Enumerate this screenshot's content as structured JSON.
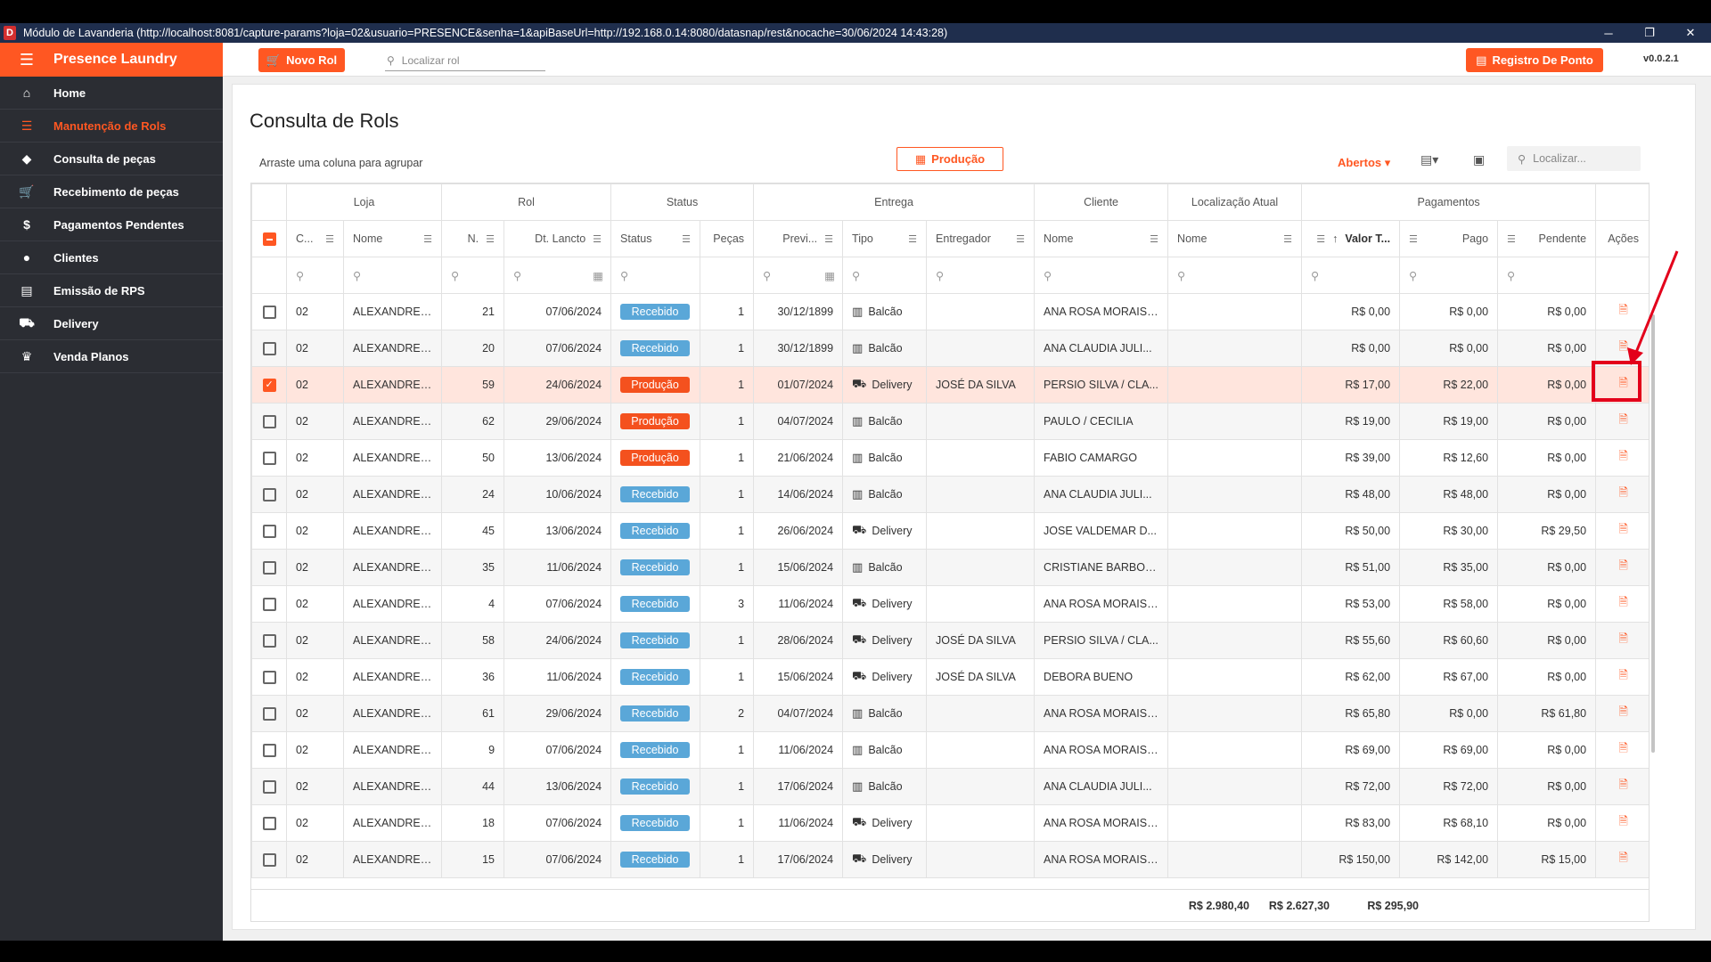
{
  "window": {
    "title": "Módulo de Lavanderia (http://localhost:8081/capture-params?loja=02&usuario=PRESENCE&senha=1&apiBaseUrl=http://192.168.0.14:8080/datasnap/rest&nocache=30/06/2024 14:43:28)",
    "app_icon_letter": "D"
  },
  "sidebar": {
    "brand": "Presence Laundry",
    "items": [
      {
        "label": "Home",
        "icon": "home-icon"
      },
      {
        "label": "Manutenção de Rols",
        "icon": "list-edit-icon",
        "active": true
      },
      {
        "label": "Consulta de peças",
        "icon": "tag-icon"
      },
      {
        "label": "Recebimento de peças",
        "icon": "cart-icon"
      },
      {
        "label": "Pagamentos Pendentes",
        "icon": "dollar-icon"
      },
      {
        "label": "Clientes",
        "icon": "person-icon"
      },
      {
        "label": "Emissão de RPS",
        "icon": "receipt-icon"
      },
      {
        "label": "Delivery",
        "icon": "delivery-icon"
      },
      {
        "label": "Venda Planos",
        "icon": "plans-icon"
      }
    ]
  },
  "toolbar": {
    "novo_rol": "Novo Rol",
    "search_placeholder": "Localizar rol",
    "registro_ponto": "Registro De Ponto",
    "version": "v0.0.2.1"
  },
  "page": {
    "title": "Consulta de Rols",
    "group_hint": "Arraste uma coluna para agrupar",
    "producao_button": "Produção",
    "abertos": "Abertos",
    "grid_search_placeholder": "Localizar..."
  },
  "grid": {
    "bands": [
      "Loja",
      "Rol",
      "Status",
      "Entrega",
      "Cliente",
      "Localização Atual",
      "Pagamentos"
    ],
    "columns": [
      "C...",
      "Nome",
      "N.",
      "Dt. Lancto",
      "Status",
      "Peças",
      "Previ...",
      "Tipo",
      "Entregador",
      "Nome",
      "Nome",
      "Valor T...",
      "Pago",
      "Pendente",
      "Ações"
    ],
    "rows": [
      {
        "cod": "02",
        "loja": "ALEXANDRE ...",
        "n": "21",
        "dt": "07/06/2024",
        "status": "Recebido",
        "pecas": "1",
        "prev": "30/12/1899",
        "tipo": "Balcão",
        "entregador": "",
        "cliente": "ANA ROSA MORAIS ...",
        "local": "",
        "valor": "R$ 0,00",
        "pago": "R$ 0,00",
        "pend": "R$ 0,00",
        "checked": false
      },
      {
        "cod": "02",
        "loja": "ALEXANDRE ...",
        "n": "20",
        "dt": "07/06/2024",
        "status": "Recebido",
        "pecas": "1",
        "prev": "30/12/1899",
        "tipo": "Balcão",
        "entregador": "",
        "cliente": "ANA CLAUDIA JULI...",
        "local": "",
        "valor": "R$ 0,00",
        "pago": "R$ 0,00",
        "pend": "R$ 0,00",
        "checked": false
      },
      {
        "cod": "02",
        "loja": "ALEXANDRE ...",
        "n": "59",
        "dt": "24/06/2024",
        "status": "Produção",
        "pecas": "1",
        "prev": "01/07/2024",
        "tipo": "Delivery",
        "entregador": "JOSÉ DA SILVA",
        "cliente": "PERSIO SILVA / CLA...",
        "local": "",
        "valor": "R$ 17,00",
        "pago": "R$ 22,00",
        "pend": "R$ 0,00",
        "checked": true
      },
      {
        "cod": "02",
        "loja": "ALEXANDRE ...",
        "n": "62",
        "dt": "29/06/2024",
        "status": "Produção",
        "pecas": "1",
        "prev": "04/07/2024",
        "tipo": "Balcão",
        "entregador": "",
        "cliente": "PAULO / CECILIA",
        "local": "",
        "valor": "R$ 19,00",
        "pago": "R$ 19,00",
        "pend": "R$ 0,00",
        "checked": false
      },
      {
        "cod": "02",
        "loja": "ALEXANDRE ...",
        "n": "50",
        "dt": "13/06/2024",
        "status": "Produção",
        "pecas": "1",
        "prev": "21/06/2024",
        "tipo": "Balcão",
        "entregador": "",
        "cliente": "FABIO CAMARGO",
        "local": "",
        "valor": "R$ 39,00",
        "pago": "R$ 12,60",
        "pend": "R$ 0,00",
        "checked": false
      },
      {
        "cod": "02",
        "loja": "ALEXANDRE ...",
        "n": "24",
        "dt": "10/06/2024",
        "status": "Recebido",
        "pecas": "1",
        "prev": "14/06/2024",
        "tipo": "Balcão",
        "entregador": "",
        "cliente": "ANA CLAUDIA JULI...",
        "local": "",
        "valor": "R$ 48,00",
        "pago": "R$ 48,00",
        "pend": "R$ 0,00",
        "checked": false
      },
      {
        "cod": "02",
        "loja": "ALEXANDRE ...",
        "n": "45",
        "dt": "13/06/2024",
        "status": "Recebido",
        "pecas": "1",
        "prev": "26/06/2024",
        "tipo": "Delivery",
        "entregador": "",
        "cliente": "JOSE VALDEMAR D...",
        "local": "",
        "valor": "R$ 50,00",
        "pago": "R$ 30,00",
        "pend": "R$ 29,50",
        "checked": false
      },
      {
        "cod": "02",
        "loja": "ALEXANDRE ...",
        "n": "35",
        "dt": "11/06/2024",
        "status": "Recebido",
        "pecas": "1",
        "prev": "15/06/2024",
        "tipo": "Balcão",
        "entregador": "",
        "cliente": "CRISTIANE BARBOSA",
        "local": "",
        "valor": "R$ 51,00",
        "pago": "R$ 35,00",
        "pend": "R$ 0,00",
        "checked": false
      },
      {
        "cod": "02",
        "loja": "ALEXANDRE ...",
        "n": "4",
        "dt": "07/06/2024",
        "status": "Recebido",
        "pecas": "3",
        "prev": "11/06/2024",
        "tipo": "Delivery",
        "entregador": "",
        "cliente": "ANA ROSA MORAIS ...",
        "local": "",
        "valor": "R$ 53,00",
        "pago": "R$ 58,00",
        "pend": "R$ 0,00",
        "checked": false
      },
      {
        "cod": "02",
        "loja": "ALEXANDRE ...",
        "n": "58",
        "dt": "24/06/2024",
        "status": "Recebido",
        "pecas": "1",
        "prev": "28/06/2024",
        "tipo": "Delivery",
        "entregador": "JOSÉ DA SILVA",
        "cliente": "PERSIO SILVA / CLA...",
        "local": "",
        "valor": "R$ 55,60",
        "pago": "R$ 60,60",
        "pend": "R$ 0,00",
        "checked": false
      },
      {
        "cod": "02",
        "loja": "ALEXANDRE ...",
        "n": "36",
        "dt": "11/06/2024",
        "status": "Recebido",
        "pecas": "1",
        "prev": "15/06/2024",
        "tipo": "Delivery",
        "entregador": "JOSÉ DA SILVA",
        "cliente": "DEBORA BUENO",
        "local": "",
        "valor": "R$ 62,00",
        "pago": "R$ 67,00",
        "pend": "R$ 0,00",
        "checked": false
      },
      {
        "cod": "02",
        "loja": "ALEXANDRE ...",
        "n": "61",
        "dt": "29/06/2024",
        "status": "Recebido",
        "pecas": "2",
        "prev": "04/07/2024",
        "tipo": "Balcão",
        "entregador": "",
        "cliente": "ANA ROSA MORAIS ...",
        "local": "",
        "valor": "R$ 65,80",
        "pago": "R$ 0,00",
        "pend": "R$ 61,80",
        "checked": false
      },
      {
        "cod": "02",
        "loja": "ALEXANDRE ...",
        "n": "9",
        "dt": "07/06/2024",
        "status": "Recebido",
        "pecas": "1",
        "prev": "11/06/2024",
        "tipo": "Balcão",
        "entregador": "",
        "cliente": "ANA ROSA MORAIS ...",
        "local": "",
        "valor": "R$ 69,00",
        "pago": "R$ 69,00",
        "pend": "R$ 0,00",
        "checked": false
      },
      {
        "cod": "02",
        "loja": "ALEXANDRE ...",
        "n": "44",
        "dt": "13/06/2024",
        "status": "Recebido",
        "pecas": "1",
        "prev": "17/06/2024",
        "tipo": "Balcão",
        "entregador": "",
        "cliente": "ANA CLAUDIA JULI...",
        "local": "",
        "valor": "R$ 72,00",
        "pago": "R$ 72,00",
        "pend": "R$ 0,00",
        "checked": false
      },
      {
        "cod": "02",
        "loja": "ALEXANDRE ...",
        "n": "18",
        "dt": "07/06/2024",
        "status": "Recebido",
        "pecas": "1",
        "prev": "11/06/2024",
        "tipo": "Delivery",
        "entregador": "",
        "cliente": "ANA ROSA MORAIS ...",
        "local": "",
        "valor": "R$ 83,00",
        "pago": "R$ 68,10",
        "pend": "R$ 0,00",
        "checked": false
      },
      {
        "cod": "02",
        "loja": "ALEXANDRE ...",
        "n": "15",
        "dt": "07/06/2024",
        "status": "Recebido",
        "pecas": "1",
        "prev": "17/06/2024",
        "tipo": "Delivery",
        "entregador": "",
        "cliente": "ANA ROSA MORAIS ...",
        "local": "",
        "valor": "R$ 150,00",
        "pago": "R$ 142,00",
        "pend": "R$ 15,00",
        "checked": false
      }
    ],
    "totals": {
      "valor": "R$ 2.980,40",
      "pago": "R$ 2.627,30",
      "pend": "R$ 295,90"
    }
  },
  "colors": {
    "accent": "#ff5722",
    "sidebar": "#2b2d33",
    "recebido": "#5aa7d8",
    "producao": "#f4511e",
    "selected_row": "#ffe5dd"
  }
}
